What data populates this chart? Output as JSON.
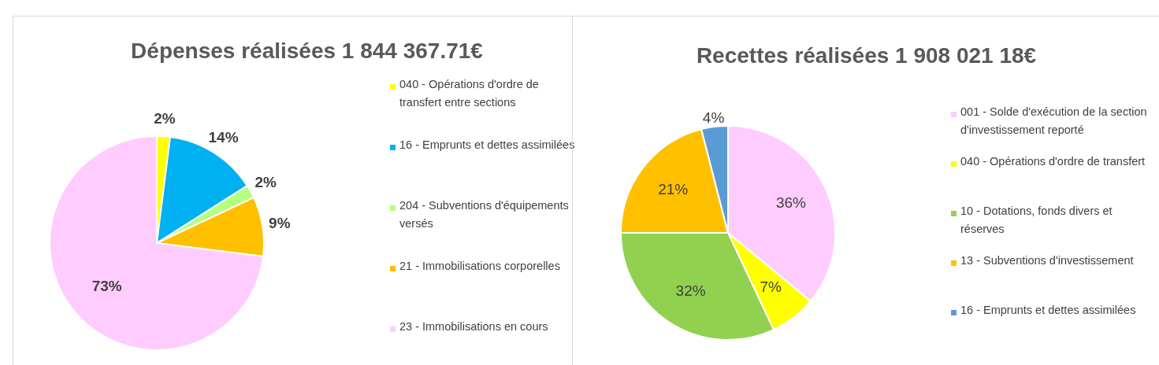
{
  "chart_data": [
    {
      "type": "pie",
      "title": "Dépenses réalisées 1 844 367.71€",
      "legend": "right",
      "categories": [
        "040 - Opérations d'ordre de transfert entre sections",
        "16 - Emprunts et dettes assimilées",
        "204 - Subventions d'équipements versés",
        "21 - Immobilisations corporelles",
        "23 - Immobilisations en cours"
      ],
      "values": [
        2,
        14,
        2,
        9,
        73
      ],
      "value_labels": [
        "2%",
        "14%",
        "2%",
        "9%",
        "73%"
      ],
      "colors": [
        "#ffff00",
        "#00b0f0",
        "#b3ff80",
        "#ffc000",
        "#ffccff"
      ]
    },
    {
      "type": "pie",
      "title": "Recettes réalisées 1 908 021 18€",
      "legend": "right",
      "categories": [
        "001 - Solde d'exécution de la section d'investissement reporté",
        "040 - Opérations d'ordre de transfert",
        "10 - Dotations, fonds divers et réserves",
        "13 - Subventions d'investissement",
        "16 - Emprunts et dettes assimilées"
      ],
      "values": [
        36,
        7,
        32,
        21,
        4
      ],
      "value_labels": [
        "36%",
        "7%",
        "32%",
        "21%",
        "4%"
      ],
      "colors": [
        "#ffccff",
        "#ffff00",
        "#92d050",
        "#ffc000",
        "#5b9bd5"
      ]
    }
  ]
}
